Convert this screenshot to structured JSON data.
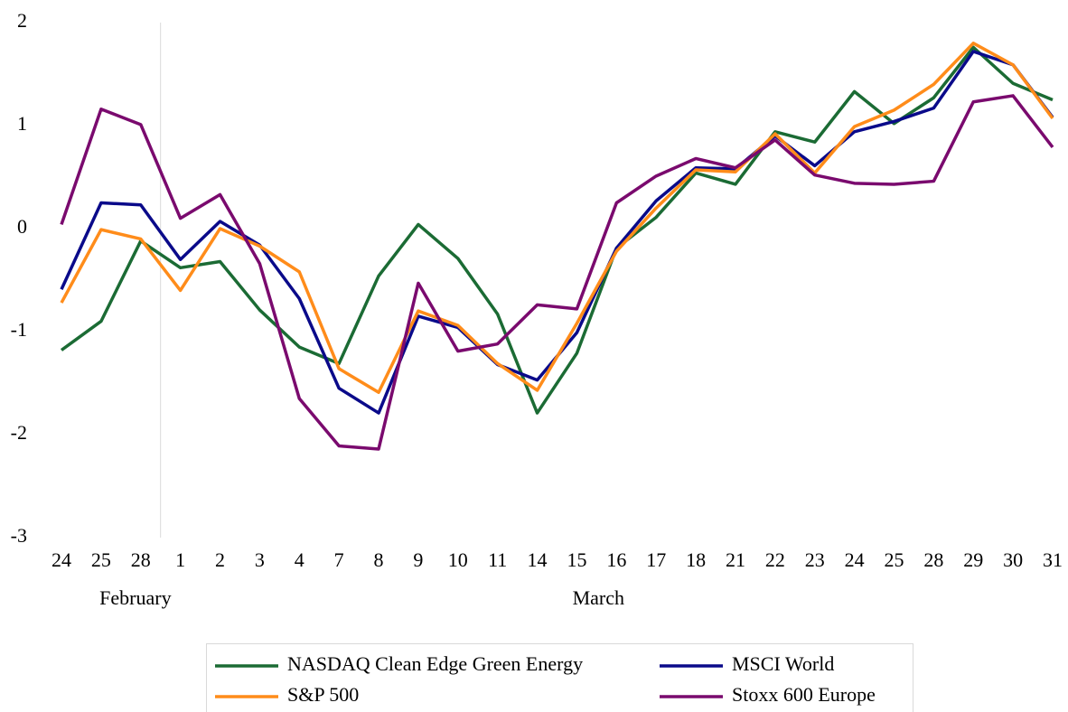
{
  "chart_data": {
    "type": "line",
    "categories": [
      "24",
      "25",
      "28",
      "1",
      "2",
      "3",
      "4",
      "7",
      "8",
      "9",
      "10",
      "11",
      "14",
      "15",
      "16",
      "17",
      "18",
      "21",
      "22",
      "23",
      "24",
      "25",
      "28",
      "29",
      "30",
      "31"
    ],
    "months": [
      {
        "name": "February",
        "count": 3
      },
      {
        "name": "March",
        "count": 23
      }
    ],
    "series": [
      {
        "name": "NASDAQ Clean Edge Green Energy",
        "color": "#1b6b34",
        "values": [
          -1.18,
          -0.9,
          -0.12,
          -0.38,
          -0.32,
          -0.79,
          -1.15,
          -1.31,
          -0.46,
          0.04,
          -0.29,
          -0.83,
          -1.79,
          -1.21,
          -0.19,
          0.11,
          0.54,
          0.43,
          0.94,
          0.84,
          1.33,
          1.02,
          1.27,
          1.76,
          1.41,
          1.25
        ]
      },
      {
        "name": "MSCI World",
        "color": "#0a0a8a",
        "values": [
          -0.59,
          0.25,
          0.23,
          -0.3,
          0.07,
          -0.16,
          -0.68,
          -1.55,
          -1.79,
          -0.85,
          -0.96,
          -1.32,
          -1.47,
          -1.01,
          -0.19,
          0.27,
          0.59,
          0.58,
          0.9,
          0.61,
          0.94,
          1.04,
          1.17,
          1.72,
          1.59,
          1.08
        ]
      },
      {
        "name": "S&P 500",
        "color": "#ff8c1a",
        "values": [
          -0.72,
          -0.01,
          -0.1,
          -0.6,
          0,
          -0.17,
          -0.42,
          -1.36,
          -1.59,
          -0.8,
          -0.94,
          -1.31,
          -1.57,
          -0.92,
          -0.22,
          0.2,
          0.57,
          0.55,
          0.92,
          0.54,
          0.99,
          1.15,
          1.4,
          1.8,
          1.59,
          1.07
        ]
      },
      {
        "name": "Stoxx 600 Europe",
        "color": "#7a0a6e",
        "values": [
          0.04,
          1.16,
          1.01,
          0.1,
          0.33,
          -0.34,
          -1.65,
          -2.11,
          -2.14,
          -0.53,
          -1.19,
          -1.12,
          -0.74,
          -0.78,
          0.25,
          0.51,
          0.68,
          0.59,
          0.86,
          0.52,
          0.44,
          0.43,
          0.46,
          1.23,
          1.29,
          0.79
        ]
      }
    ],
    "ylim": [
      -3,
      2
    ],
    "yticks": [
      -3,
      -2,
      -1,
      0,
      1,
      2
    ],
    "grid": false,
    "legend": "bottom"
  }
}
